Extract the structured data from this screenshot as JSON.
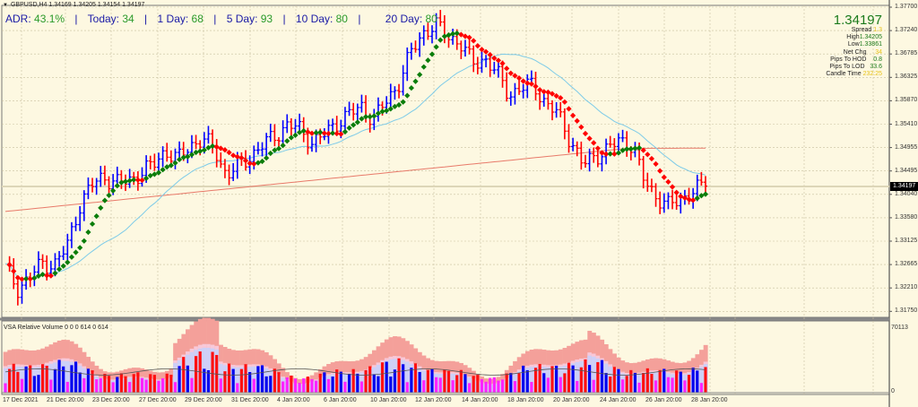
{
  "header": {
    "symbol_line": "GBPUSD,H4  1.34169 1.34205 1.34154 1.34197"
  },
  "adr_bar": {
    "adr_label": "ADR:",
    "adr_value": "43.1%",
    "today_label": "Today:",
    "today_value": "34",
    "day1_label": "1 Day:",
    "day1_value": "68",
    "day5_label": "5 Day:",
    "day5_value": "93",
    "day10_label": "10 Day:",
    "day10_value": "80",
    "day20_label": "20 Day:",
    "day20_value": "80",
    "separator": "|"
  },
  "info_panel": {
    "price": "1.34197",
    "spread_label": "Spread",
    "spread_value": "1.3",
    "high_label": "High",
    "high_value": "1.34205",
    "low_label": "Low",
    "low_value": "1.33861",
    "netchg_label": "Net Chg",
    "netchg_value": "34",
    "pips_hod_label": "Pips To HOD",
    "pips_hod_value": "0.8",
    "pips_lod_label": "Pips To LOD",
    "pips_lod_value": "33.6",
    "candle_label": "Candle Time",
    "candle_value": "232:25"
  },
  "price_axis": {
    "labels": [
      "1.37700",
      "1.37240",
      "1.36785",
      "1.36325",
      "1.35870",
      "1.35410",
      "1.34955",
      "1.34495",
      "1.34040",
      "1.33580",
      "1.33125",
      "1.32665",
      "1.32210",
      "1.31750"
    ],
    "current_price": "1.34197"
  },
  "volume_panel": {
    "title": "VSA Relative Volume 0 0 0 614 0 614",
    "max_label": "70113",
    "min_label": "0"
  },
  "time_axis": {
    "labels": [
      "17 Dec 2021",
      "21 Dec 20:00",
      "23 Dec 20:00",
      "27 Dec 20:00",
      "29 Dec 20:00",
      "31 Dec 20:00",
      "4 Jan 20:00",
      "6 Jan 20:00",
      "10 Jan 20:00",
      "12 Jan 20:00",
      "14 Jan 20:00",
      "18 Jan 20:00",
      "20 Jan 20:00",
      "24 Jan 20:00",
      "26 Jan 20:00",
      "28 Jan 20:00"
    ]
  },
  "colors": {
    "background": "#fdf8e1",
    "bull_bar": "#0000ff",
    "bear_bar": "#ff0000",
    "trend_up": "#0a7d0a",
    "trend_down": "#ff0000",
    "ma_fast": "#7ecbe8",
    "ma_slow": "#e87a6a",
    "grid": "#c8c0a0"
  },
  "chart_data": {
    "type": "ohlc",
    "title": "GBPUSD,H4",
    "x_labels": [
      "17 Dec 2021",
      "21 Dec 20:00",
      "23 Dec 20:00",
      "27 Dec 20:00",
      "29 Dec 20:00",
      "31 Dec 20:00",
      "4 Jan 20:00",
      "6 Jan 20:00",
      "10 Jan 20:00",
      "12 Jan 20:00",
      "14 Jan 20:00",
      "18 Jan 20:00",
      "20 Jan 20:00",
      "24 Jan 20:00",
      "26 Jan 20:00",
      "28 Jan 20:00"
    ],
    "ylim": [
      1.3175,
      1.377
    ],
    "close_path": [
      1.326,
      1.322,
      1.324,
      1.327,
      1.3265,
      1.33,
      1.338,
      1.342,
      1.344,
      1.3425,
      1.343,
      1.3445,
      1.346,
      1.349,
      1.347,
      1.35,
      1.351,
      1.3495,
      1.344,
      1.346,
      1.348,
      1.35,
      1.352,
      1.354,
      1.353,
      1.3505,
      1.352,
      1.3545,
      1.356,
      1.3575,
      1.355,
      1.3585,
      1.362,
      1.368,
      1.372,
      1.3735,
      1.3715,
      1.37,
      1.366,
      1.367,
      1.364,
      1.36,
      1.361,
      1.362,
      1.358,
      1.356,
      1.351,
      1.346,
      1.348,
      1.349,
      1.351,
      1.35,
      1.343,
      1.34,
      1.338,
      1.3395,
      1.341,
      1.342
    ],
    "current": 1.34197,
    "volume_max": 70113
  }
}
